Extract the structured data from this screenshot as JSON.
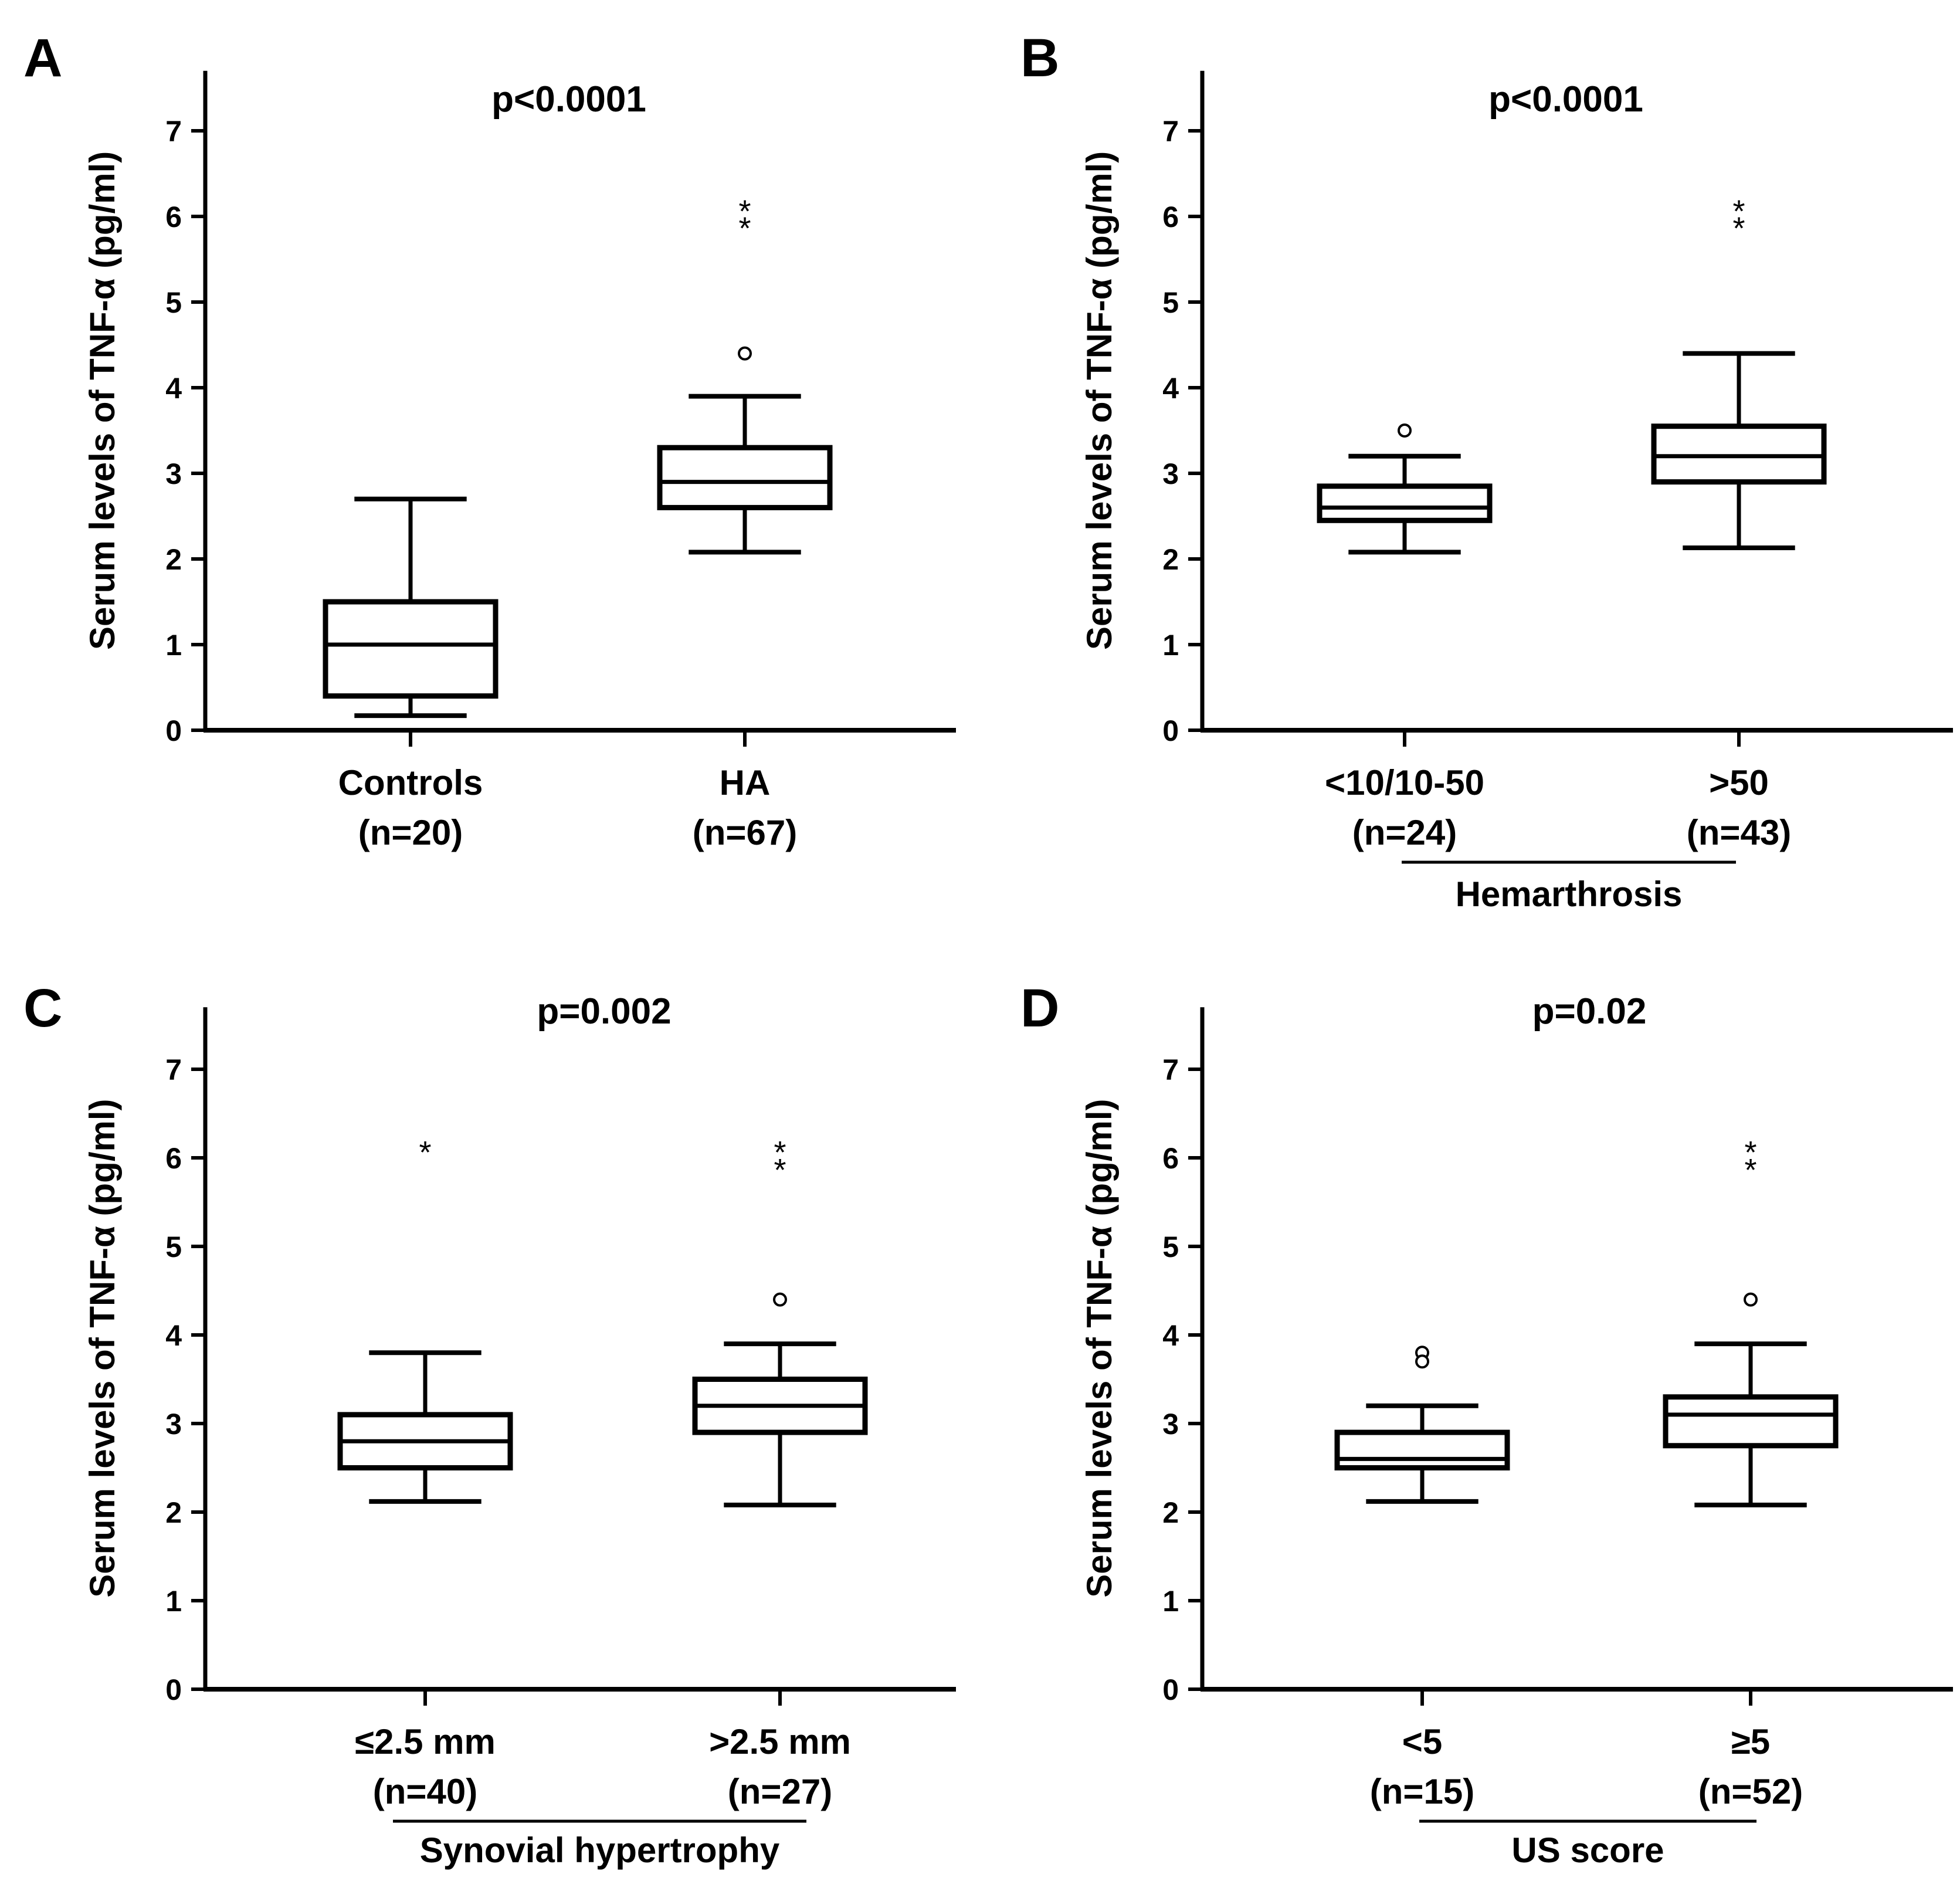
{
  "chart_data": [
    {
      "panel_letter": "A",
      "type": "box",
      "title": "p<0.0001",
      "ylabel": "Serum levels of TNF-α (pg/ml)",
      "ylim": [
        0,
        7.7
      ],
      "yticks": [
        "0",
        "1",
        "2",
        "3",
        "4",
        "5",
        "6",
        "7"
      ],
      "group_label": "",
      "categories": [
        {
          "label": "Controls",
          "n_label": "(n=20)",
          "min": 0.17,
          "q1": 0.4,
          "median": 1.0,
          "q3": 1.5,
          "max": 2.7,
          "outliers": [],
          "extremes": []
        },
        {
          "label": "HA",
          "n_label": "(n=67)",
          "min": 2.08,
          "q1": 2.6,
          "median": 2.9,
          "q3": 3.3,
          "max": 3.9,
          "outliers": [
            4.4
          ],
          "extremes": [
            6.1,
            5.9
          ]
        }
      ]
    },
    {
      "panel_letter": "B",
      "type": "box",
      "title": "p<0.0001",
      "ylabel": "Serum levels of TNF-α (pg/ml)",
      "ylim": [
        0,
        7.7
      ],
      "yticks": [
        "0",
        "1",
        "2",
        "3",
        "4",
        "5",
        "6",
        "7"
      ],
      "group_label": "Hemarthrosis",
      "categories": [
        {
          "label": "<10/10-50",
          "n_label": "(n=24)",
          "min": 2.08,
          "q1": 2.45,
          "median": 2.6,
          "q3": 2.85,
          "max": 3.2,
          "outliers": [
            3.5
          ],
          "extremes": []
        },
        {
          "label": ">50",
          "n_label": "(n=43)",
          "min": 2.13,
          "q1": 2.9,
          "median": 3.2,
          "q3": 3.55,
          "max": 4.4,
          "outliers": [],
          "extremes": [
            6.1,
            5.9
          ]
        }
      ]
    },
    {
      "panel_letter": "C",
      "type": "box",
      "title": "p=0.002",
      "ylabel": "Serum levels of TNF-α (pg/ml)",
      "ylim": [
        0,
        7.7
      ],
      "yticks": [
        "0",
        "1",
        "2",
        "3",
        "4",
        "5",
        "6",
        "7"
      ],
      "group_label": "Synovial hypertrophy",
      "categories": [
        {
          "label": "≤2.5 mm",
          "n_label": "(n=40)",
          "min": 2.12,
          "q1": 2.5,
          "median": 2.8,
          "q3": 3.1,
          "max": 3.8,
          "outliers": [],
          "extremes": [
            6.1
          ]
        },
        {
          "label": ">2.5 mm",
          "n_label": "(n=27)",
          "min": 2.08,
          "q1": 2.9,
          "median": 3.2,
          "q3": 3.5,
          "max": 3.9,
          "outliers": [
            4.4
          ],
          "extremes": [
            6.1,
            5.9
          ]
        }
      ]
    },
    {
      "panel_letter": "D",
      "type": "box",
      "title": "p=0.02",
      "ylabel": "Serum levels of TNF-α (pg/ml)",
      "ylim": [
        0,
        7.7
      ],
      "yticks": [
        "0",
        "1",
        "2",
        "3",
        "4",
        "5",
        "6",
        "7"
      ],
      "group_label": "US score",
      "categories": [
        {
          "label": "<5",
          "n_label": "(n=15)",
          "min": 2.12,
          "q1": 2.5,
          "median": 2.6,
          "q3": 2.9,
          "max": 3.2,
          "outliers": [
            3.8,
            3.7
          ],
          "extremes": []
        },
        {
          "label": "≥5",
          "n_label": "(n=52)",
          "min": 2.08,
          "q1": 2.75,
          "median": 3.1,
          "q3": 3.3,
          "max": 3.9,
          "outliers": [
            4.4
          ],
          "extremes": [
            6.1,
            5.9
          ]
        }
      ]
    }
  ]
}
